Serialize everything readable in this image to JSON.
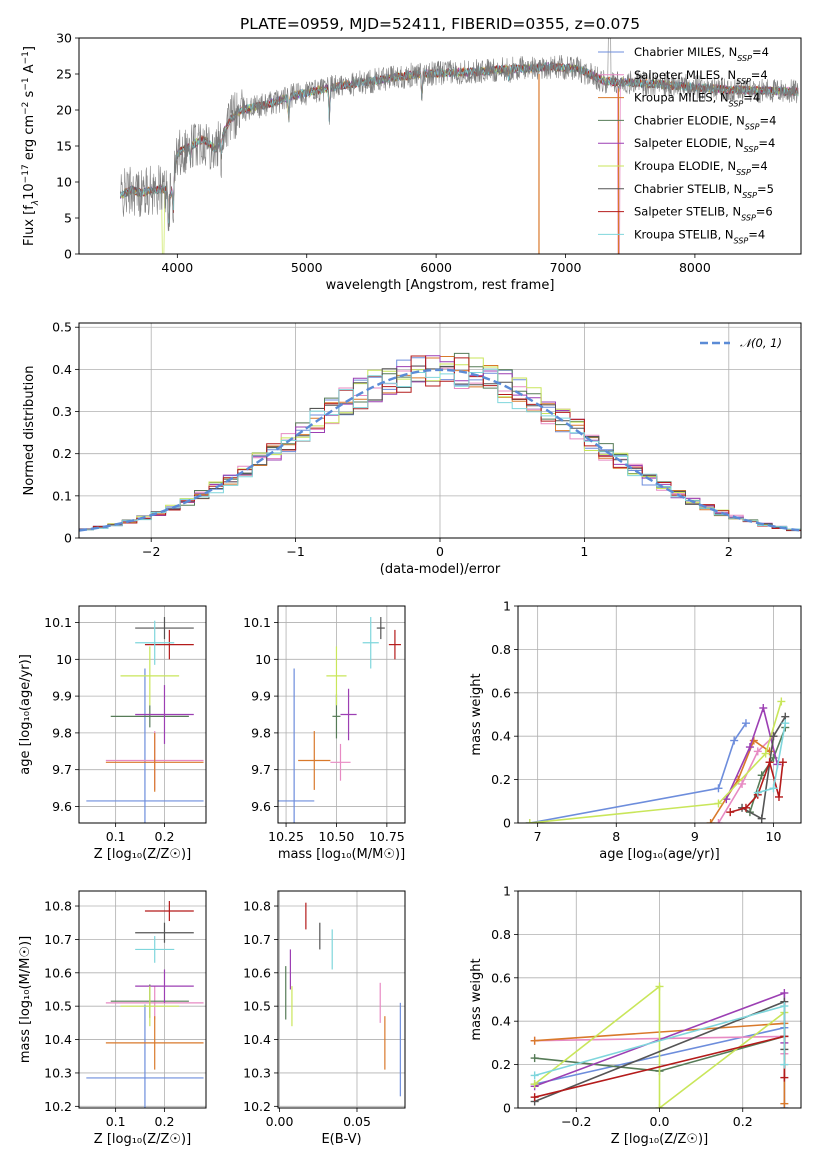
{
  "figure": {
    "title": "PLATE=0959, MJD=52411, FIBERID=0355, z=0.075"
  },
  "chart_data": [
    {
      "id": "spectrum",
      "type": "line",
      "xlabel": "wavelength [Angstrom, rest frame]",
      "ylabel_parts": [
        "Flux [f",
        "λ",
        "10",
        "−17",
        " erg cm",
        "−2",
        " s",
        "−1",
        " A",
        "−1",
        "]"
      ],
      "xlim": [
        3240,
        8820
      ],
      "ylim": [
        0,
        30
      ],
      "xticks": [
        4000,
        5000,
        6000,
        7000,
        8000
      ],
      "yticks": [
        0,
        5,
        10,
        15,
        20,
        25,
        30
      ],
      "grid": false,
      "legend_position": "top-right",
      "continuum": {
        "x": [
          3550,
          3650,
          3700,
          3800,
          3900,
          3950,
          4000,
          4100,
          4200,
          4300,
          4400,
          4500,
          4700,
          4900,
          5100,
          5300,
          5500,
          5700,
          5900,
          6100,
          6300,
          6500,
          6700,
          6900,
          7100,
          7300,
          7500,
          7700,
          7900,
          8100,
          8300,
          8500,
          8700,
          8800
        ],
        "y": [
          8,
          9,
          8.5,
          8.8,
          9,
          8.2,
          14,
          15,
          16,
          14.5,
          18.5,
          20,
          20.8,
          22,
          22.8,
          23.5,
          24,
          24.6,
          25,
          25.2,
          25.3,
          25.6,
          25.8,
          26,
          25.7,
          24,
          23.8,
          23.6,
          23.3,
          23,
          22.8,
          22.7,
          22.6,
          22.5
        ]
      },
      "series": [
        {
          "name": "Chabrier MILES, N",
          "sub": "SSP",
          "tail": "=4",
          "color": "#6d8ddc"
        },
        {
          "name": "Salpeter MILES, N",
          "sub": "SSP",
          "tail": "=4",
          "color": "#e78ac3"
        },
        {
          "name": "Kroupa MILES, N",
          "sub": "SSP",
          "tail": "=4",
          "color": "#d9792b"
        },
        {
          "name": "Chabrier ELODIE, N",
          "sub": "SSP",
          "tail": "=4",
          "color": "#567b57"
        },
        {
          "name": "Salpeter ELODIE, N",
          "sub": "SSP",
          "tail": "=4",
          "color": "#9c3fb3"
        },
        {
          "name": "Kroupa ELODIE, N",
          "sub": "SSP",
          "tail": "=4",
          "color": "#c9e65a"
        },
        {
          "name": "Chabrier STELIB, N",
          "sub": "SSP",
          "tail": "=5",
          "color": "#555555"
        },
        {
          "name": "Salpeter STELIB, N",
          "sub": "SSP",
          "tail": "=6",
          "color": "#b41b1b"
        },
        {
          "name": "Kroupa STELIB, N",
          "sub": "SSP",
          "tail": "=4",
          "color": "#7fd6dc"
        }
      ]
    },
    {
      "id": "residuals",
      "type": "histogram",
      "xlabel": "(data-model)/error",
      "ylabel": "Normed distribution",
      "xlim": [
        -2.5,
        2.5
      ],
      "ylim": [
        0,
        0.51
      ],
      "xticks": [
        -2,
        -1,
        0,
        1,
        2
      ],
      "yticks": [
        0,
        0.1,
        0.2,
        0.3,
        0.4,
        0.5
      ],
      "grid": true,
      "legend_position": "top-right",
      "reference_curve": {
        "label": "𝒩(0, 1)",
        "color": "#5b8bd6"
      },
      "bin_edges_range": [
        -2.5,
        2.5
      ],
      "bin_count": 50
    },
    {
      "id": "age-vs-Z",
      "type": "errorbar",
      "xlabel": "Z [log₁₀(Z/Z☉)]",
      "ylabel": "age  [log₁₀(age/yr)]",
      "xlim": [
        0.025,
        0.285
      ],
      "ylim": [
        9.555,
        10.145
      ],
      "xticks": [
        0.1,
        0.2
      ],
      "yticks": [
        9.6,
        9.7,
        9.8,
        9.9,
        10.0,
        10.1
      ],
      "grid": true,
      "points": [
        {
          "x": 0.16,
          "xerr": 0.12,
          "y": 9.615,
          "yerr": 0.36,
          "color": "#6d8ddc"
        },
        {
          "x": 0.18,
          "xerr": 0.1,
          "y": 9.725,
          "yerr": 0.08,
          "color": "#e78ac3"
        },
        {
          "x": 0.18,
          "xerr": 0.1,
          "y": 9.72,
          "yerr": 0.08,
          "color": "#d9792b"
        },
        {
          "x": 0.17,
          "xerr": 0.08,
          "y": 9.845,
          "yerr": 0.03,
          "color": "#567b57"
        },
        {
          "x": 0.2,
          "xerr": 0.06,
          "y": 9.85,
          "yerr": 0.08,
          "color": "#9c3fb3"
        },
        {
          "x": 0.17,
          "xerr": 0.06,
          "y": 9.955,
          "yerr": 0.08,
          "color": "#c9e65a"
        },
        {
          "x": 0.2,
          "xerr": 0.06,
          "y": 10.085,
          "yerr": 0.03,
          "color": "#555555"
        },
        {
          "x": 0.21,
          "xerr": 0.05,
          "y": 10.04,
          "yerr": 0.04,
          "color": "#b41b1b"
        },
        {
          "x": 0.18,
          "xerr": 0.04,
          "y": 10.045,
          "yerr": 0.06,
          "color": "#7fd6dc"
        }
      ]
    },
    {
      "id": "age-vs-mass",
      "type": "errorbar",
      "xlabel": "mass [log₁₀(M/M☉)]",
      "ylabel": "",
      "xlim": [
        10.21,
        10.84
      ],
      "ylim": [
        9.555,
        10.145
      ],
      "xticks": [
        10.25,
        10.5,
        10.75
      ],
      "xticklabels": [
        "10.25",
        "10.50",
        "10.75"
      ],
      "yticks": [
        9.6,
        9.7,
        9.8,
        9.9,
        10.0,
        10.1
      ],
      "grid": true,
      "points": [
        {
          "x": 10.29,
          "xerr": 0.1,
          "y": 9.615,
          "yerr": 0.36,
          "color": "#6d8ddc"
        },
        {
          "x": 10.52,
          "xerr": 0.05,
          "y": 9.72,
          "yerr": 0.05,
          "color": "#e78ac3"
        },
        {
          "x": 10.39,
          "xerr": 0.08,
          "y": 9.725,
          "yerr": 0.08,
          "color": "#d9792b"
        },
        {
          "x": 10.5,
          "xerr": 0.02,
          "y": 9.845,
          "yerr": 0.06,
          "color": "#567b57"
        },
        {
          "x": 10.56,
          "xerr": 0.04,
          "y": 9.85,
          "yerr": 0.07,
          "color": "#9c3fb3"
        },
        {
          "x": 10.5,
          "xerr": 0.05,
          "y": 9.955,
          "yerr": 0.08,
          "color": "#c9e65a"
        },
        {
          "x": 10.72,
          "xerr": 0.02,
          "y": 10.085,
          "yerr": 0.03,
          "color": "#555555"
        },
        {
          "x": 10.79,
          "xerr": 0.03,
          "y": 10.04,
          "yerr": 0.04,
          "color": "#b41b1b"
        },
        {
          "x": 10.67,
          "xerr": 0.04,
          "y": 10.045,
          "yerr": 0.07,
          "color": "#7fd6dc"
        }
      ]
    },
    {
      "id": "mass-weight-vs-age",
      "type": "line",
      "xlabel": "age  [log₁₀(age/yr)]",
      "ylabel": "mass weight",
      "xlim": [
        6.75,
        10.35
      ],
      "ylim": [
        0,
        1
      ],
      "xticks": [
        7,
        8,
        9,
        10
      ],
      "yticks": [
        0,
        0.2,
        0.4,
        0.6,
        0.8,
        1.0
      ],
      "grid": true,
      "series": [
        {
          "color": "#6d8ddc",
          "points": [
            [
              6.9,
              0.0
            ],
            [
              9.3,
              0.16
            ],
            [
              9.5,
              0.38
            ],
            [
              9.65,
              0.46
            ]
          ]
        },
        {
          "color": "#e78ac3",
          "points": [
            [
              9.3,
              0.0
            ],
            [
              9.6,
              0.18
            ],
            [
              9.8,
              0.33
            ],
            [
              10.0,
              0.4
            ]
          ]
        },
        {
          "color": "#d9792b",
          "points": [
            [
              9.2,
              0.0
            ],
            [
              9.55,
              0.2
            ],
            [
              9.75,
              0.38
            ],
            [
              9.95,
              0.33
            ]
          ]
        },
        {
          "color": "#567b57",
          "points": [
            [
              9.7,
              0.05
            ],
            [
              9.85,
              0.22
            ],
            [
              10.0,
              0.3
            ],
            [
              10.15,
              0.44
            ]
          ]
        },
        {
          "color": "#9c3fb3",
          "points": [
            [
              9.4,
              0.11
            ],
            [
              9.7,
              0.35
            ],
            [
              9.87,
              0.53
            ],
            [
              10.05,
              0.27
            ]
          ]
        },
        {
          "color": "#c9e65a",
          "points": [
            [
              6.9,
              0.0
            ],
            [
              9.3,
              0.09
            ],
            [
              9.9,
              0.32
            ],
            [
              10.1,
              0.56
            ]
          ]
        },
        {
          "color": "#555555",
          "points": [
            [
              9.6,
              0.07
            ],
            [
              9.85,
              0.02
            ],
            [
              10.0,
              0.4
            ],
            [
              10.15,
              0.49
            ]
          ]
        },
        {
          "color": "#b41b1b",
          "points": [
            [
              9.45,
              0.05
            ],
            [
              9.65,
              0.07
            ],
            [
              9.8,
              0.13
            ],
            [
              9.95,
              0.28
            ],
            [
              10.07,
              0.12
            ],
            [
              10.12,
              0.28
            ]
          ]
        },
        {
          "color": "#7fd6dc",
          "points": [
            [
              9.8,
              0.14
            ],
            [
              10.0,
              0.16
            ],
            [
              10.15,
              0.46
            ]
          ]
        }
      ]
    },
    {
      "id": "mass-vs-Z",
      "type": "errorbar",
      "xlabel": "Z [log₁₀(Z/Z☉)]",
      "ylabel": "mass [log₁₀(M/M☉)]",
      "xlim": [
        0.025,
        0.285
      ],
      "ylim": [
        10.195,
        10.845
      ],
      "xticks": [
        0.1,
        0.2
      ],
      "yticks": [
        10.2,
        10.3,
        10.4,
        10.5,
        10.6,
        10.7,
        10.8
      ],
      "grid": true,
      "points": [
        {
          "x": 0.16,
          "xerr": 0.12,
          "y": 10.285,
          "yerr": 0.22,
          "color": "#6d8ddc"
        },
        {
          "x": 0.18,
          "xerr": 0.1,
          "y": 10.51,
          "yerr": 0.05,
          "color": "#e78ac3"
        },
        {
          "x": 0.18,
          "xerr": 0.1,
          "y": 10.39,
          "yerr": 0.08,
          "color": "#d9792b"
        },
        {
          "x": 0.17,
          "xerr": 0.08,
          "y": 10.515,
          "yerr": 0.05,
          "color": "#567b57"
        },
        {
          "x": 0.2,
          "xerr": 0.06,
          "y": 10.56,
          "yerr": 0.05,
          "color": "#9c3fb3"
        },
        {
          "x": 0.17,
          "xerr": 0.06,
          "y": 10.5,
          "yerr": 0.06,
          "color": "#c9e65a"
        },
        {
          "x": 0.2,
          "xerr": 0.06,
          "y": 10.72,
          "yerr": 0.03,
          "color": "#555555"
        },
        {
          "x": 0.21,
          "xerr": 0.05,
          "y": 10.785,
          "yerr": 0.03,
          "color": "#b41b1b"
        },
        {
          "x": 0.18,
          "xerr": 0.04,
          "y": 10.67,
          "yerr": 0.04,
          "color": "#7fd6dc"
        }
      ]
    },
    {
      "id": "mass-vs-EBV",
      "type": "errorbar",
      "xlabel": "E(B-V)",
      "ylabel": "",
      "xlim": [
        -0.001,
        0.081
      ],
      "ylim": [
        10.195,
        10.845
      ],
      "xticks": [
        0.0,
        0.05
      ],
      "xticklabels": [
        "0.00",
        "0.05"
      ],
      "yticks": [
        10.2,
        10.3,
        10.4,
        10.5,
        10.6,
        10.7,
        10.8
      ],
      "grid": true,
      "points": [
        {
          "x": 0.078,
          "y": 10.37,
          "yerr": 0.14,
          "color": "#6d8ddc"
        },
        {
          "x": 0.065,
          "y": 10.51,
          "yerr": 0.06,
          "color": "#e78ac3"
        },
        {
          "x": 0.068,
          "y": 10.39,
          "yerr": 0.08,
          "color": "#d9792b"
        },
        {
          "x": 0.004,
          "y": 10.54,
          "yerr": 0.08,
          "color": "#567b57"
        },
        {
          "x": 0.007,
          "y": 10.61,
          "yerr": 0.06,
          "color": "#9c3fb3"
        },
        {
          "x": 0.008,
          "y": 10.5,
          "yerr": 0.06,
          "color": "#c9e65a"
        },
        {
          "x": 0.026,
          "y": 10.71,
          "yerr": 0.04,
          "color": "#555555"
        },
        {
          "x": 0.017,
          "y": 10.77,
          "yerr": 0.04,
          "color": "#b41b1b"
        },
        {
          "x": 0.034,
          "y": 10.67,
          "yerr": 0.06,
          "color": "#7fd6dc"
        }
      ]
    },
    {
      "id": "mass-weight-vs-Z",
      "type": "line",
      "xlabel": "Z [log₁₀(Z/Z☉)]",
      "ylabel": "mass weight",
      "xlim": [
        -0.34,
        0.34
      ],
      "ylim": [
        0,
        1
      ],
      "xticks": [
        -0.2,
        0.0,
        0.2
      ],
      "xticklabels": [
        "−0.2",
        "0.0",
        "0.2"
      ],
      "yticks": [
        0,
        0.2,
        0.4,
        0.6,
        0.8,
        1.0
      ],
      "grid": true,
      "series": [
        {
          "color": "#6d8ddc",
          "points": [
            [
              -0.3,
              0.11
            ],
            [
              0.3,
              0.37
            ],
            [
              0.3,
              0.0
            ]
          ]
        },
        {
          "color": "#e78ac3",
          "points": [
            [
              -0.3,
              0.31
            ],
            [
              0.3,
              0.33
            ],
            [
              0.3,
              0.25
            ]
          ]
        },
        {
          "color": "#d9792b",
          "points": [
            [
              -0.3,
              0.31
            ],
            [
              0.3,
              0.39
            ],
            [
              0.3,
              0.02
            ]
          ]
        },
        {
          "color": "#567b57",
          "points": [
            [
              -0.3,
              0.23
            ],
            [
              0.0,
              0.17
            ],
            [
              0.3,
              0.33
            ]
          ]
        },
        {
          "color": "#9c3fb3",
          "points": [
            [
              -0.3,
              0.1
            ],
            [
              0.3,
              0.53
            ],
            [
              0.3,
              0.3
            ]
          ]
        },
        {
          "color": "#c9e65a",
          "points": [
            [
              -0.3,
              0.11
            ],
            [
              0.0,
              0.56
            ],
            [
              0.0,
              0.0
            ],
            [
              0.3,
              0.44
            ]
          ]
        },
        {
          "color": "#555555",
          "points": [
            [
              -0.3,
              0.03
            ],
            [
              0.3,
              0.49
            ],
            [
              0.3,
              0.27
            ]
          ]
        },
        {
          "color": "#b41b1b",
          "points": [
            [
              -0.3,
              0.05
            ],
            [
              0.3,
              0.33
            ],
            [
              0.3,
              0.14
            ]
          ]
        },
        {
          "color": "#7fd6dc",
          "points": [
            [
              -0.3,
              0.15
            ],
            [
              0.3,
              0.47
            ],
            [
              0.3,
              0.2
            ]
          ]
        }
      ]
    }
  ]
}
